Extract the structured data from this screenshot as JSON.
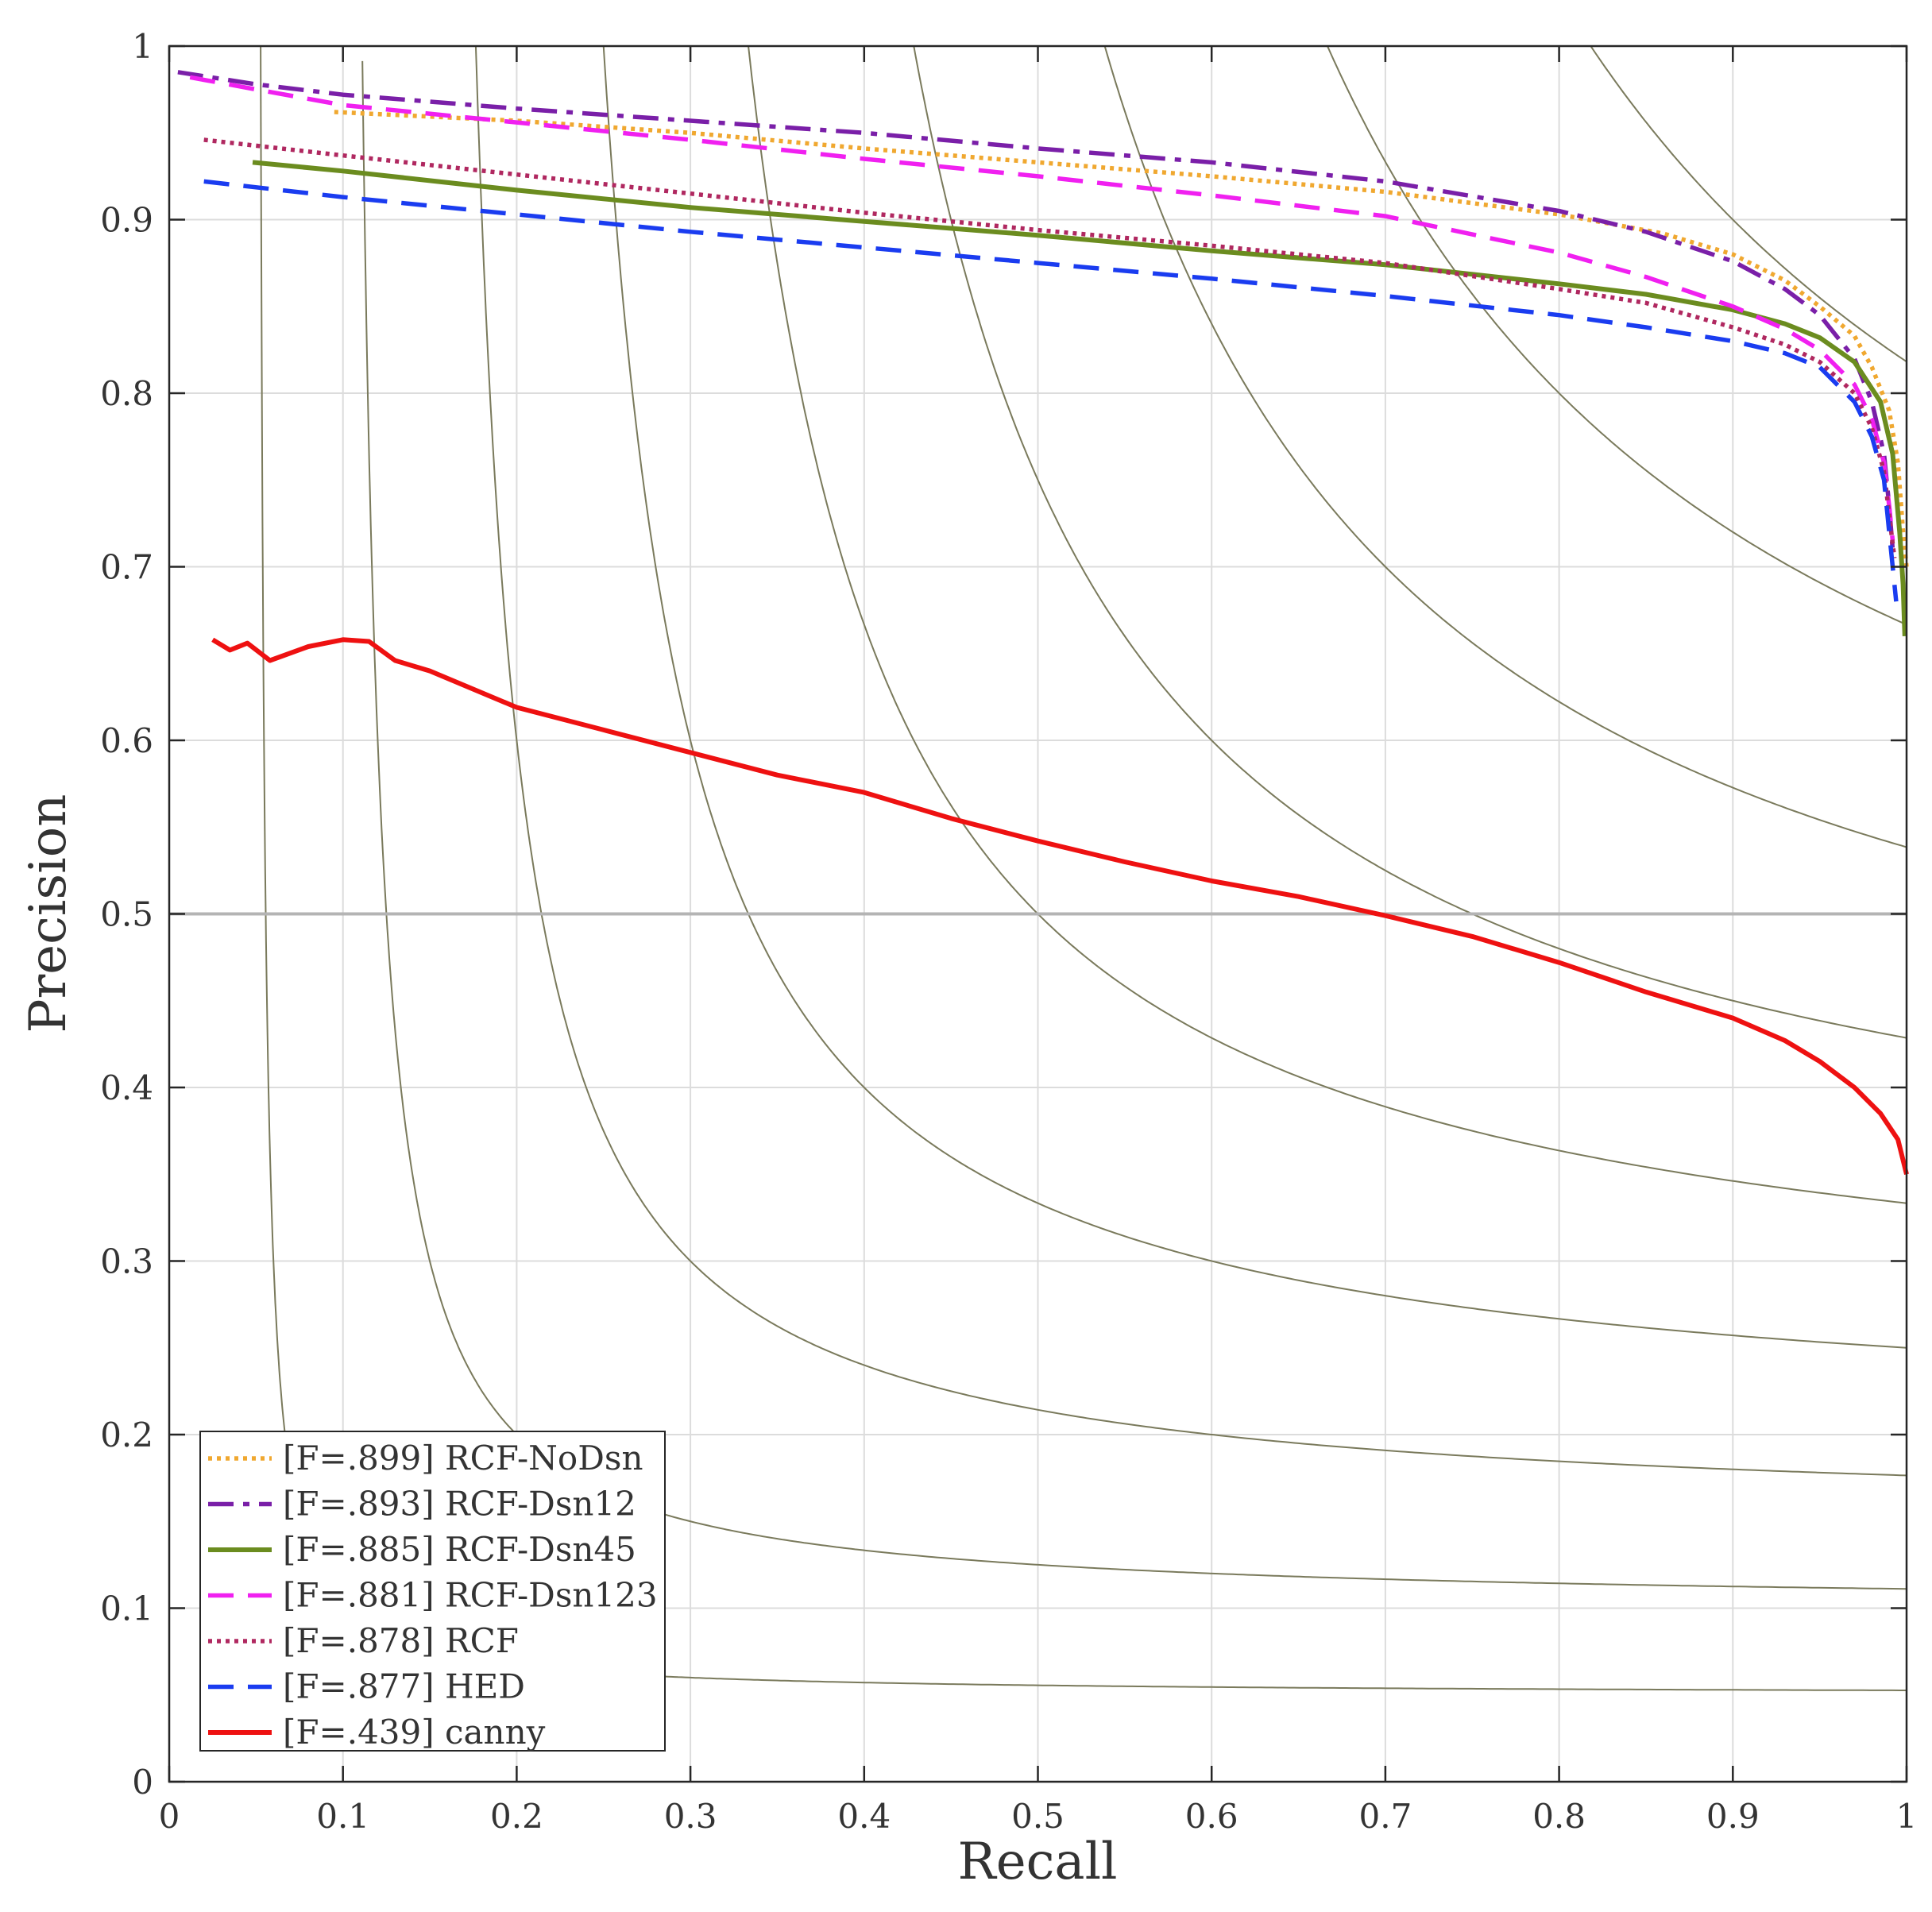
{
  "chart_data": {
    "type": "line",
    "title": "",
    "xlabel": "Recall",
    "ylabel": "Precision",
    "xlim": [
      0,
      1
    ],
    "ylim": [
      0,
      1
    ],
    "grid": true,
    "legend_position": "bottom-left",
    "x_ticks": [
      "0",
      "0.1",
      "0.2",
      "0.3",
      "0.4",
      "0.5",
      "0.6",
      "0.7",
      "0.8",
      "0.9",
      "1"
    ],
    "y_ticks": [
      "0",
      "0.1",
      "0.2",
      "0.3",
      "0.4",
      "0.5",
      "0.6",
      "0.7",
      "0.8",
      "0.9",
      "1"
    ],
    "reference_line": {
      "y": 0.5,
      "color": "#b4b4b4"
    },
    "iso_f_contours": [
      0.1,
      0.2,
      0.3,
      0.4,
      0.5,
      0.6,
      0.7,
      0.8,
      0.9
    ],
    "iso_color": "#7a7a5c",
    "series": [
      {
        "name": "[F=.899] RCF-NoDsn",
        "color": "#f0a830",
        "style": "dotted",
        "points": [
          [
            0.095,
            0.962
          ],
          [
            0.2,
            0.957
          ],
          [
            0.3,
            0.95
          ],
          [
            0.4,
            0.941
          ],
          [
            0.5,
            0.933
          ],
          [
            0.6,
            0.925
          ],
          [
            0.7,
            0.916
          ],
          [
            0.8,
            0.903
          ],
          [
            0.86,
            0.892
          ],
          [
            0.9,
            0.88
          ],
          [
            0.93,
            0.865
          ],
          [
            0.95,
            0.85
          ],
          [
            0.97,
            0.833
          ],
          [
            0.98,
            0.815
          ],
          [
            0.99,
            0.79
          ],
          [
            0.995,
            0.76
          ],
          [
            0.998,
            0.72
          ],
          [
            1.0,
            0.7
          ]
        ]
      },
      {
        "name": "[F=.893] RCF-Dsn12",
        "color": "#7a1fa8",
        "style": "dashdot",
        "points": [
          [
            0.005,
            0.985
          ],
          [
            0.05,
            0.978
          ],
          [
            0.1,
            0.972
          ],
          [
            0.2,
            0.964
          ],
          [
            0.3,
            0.957
          ],
          [
            0.4,
            0.95
          ],
          [
            0.5,
            0.941
          ],
          [
            0.6,
            0.933
          ],
          [
            0.7,
            0.922
          ],
          [
            0.8,
            0.905
          ],
          [
            0.85,
            0.893
          ],
          [
            0.9,
            0.876
          ],
          [
            0.93,
            0.86
          ],
          [
            0.95,
            0.845
          ],
          [
            0.97,
            0.82
          ],
          [
            0.98,
            0.795
          ],
          [
            0.987,
            0.765
          ],
          [
            0.99,
            0.735
          ],
          [
            0.992,
            0.71
          ]
        ]
      },
      {
        "name": "[F=.885] RCF-Dsn45",
        "color": "#6b8c1f",
        "style": "solid",
        "points": [
          [
            0.048,
            0.933
          ],
          [
            0.1,
            0.928
          ],
          [
            0.2,
            0.917
          ],
          [
            0.3,
            0.907
          ],
          [
            0.4,
            0.899
          ],
          [
            0.5,
            0.891
          ],
          [
            0.6,
            0.882
          ],
          [
            0.7,
            0.874
          ],
          [
            0.8,
            0.863
          ],
          [
            0.85,
            0.857
          ],
          [
            0.9,
            0.848
          ],
          [
            0.93,
            0.84
          ],
          [
            0.95,
            0.832
          ],
          [
            0.97,
            0.818
          ],
          [
            0.985,
            0.795
          ],
          [
            0.992,
            0.765
          ],
          [
            0.996,
            0.72
          ],
          [
            0.998,
            0.69
          ],
          [
            0.999,
            0.66
          ]
        ]
      },
      {
        "name": "[F=.881] RCF-Dsn123",
        "color": "#f020f0",
        "style": "dashed",
        "points": [
          [
            0.012,
            0.982
          ],
          [
            0.05,
            0.975
          ],
          [
            0.1,
            0.966
          ],
          [
            0.2,
            0.956
          ],
          [
            0.3,
            0.946
          ],
          [
            0.4,
            0.935
          ],
          [
            0.5,
            0.925
          ],
          [
            0.6,
            0.914
          ],
          [
            0.7,
            0.902
          ],
          [
            0.8,
            0.881
          ],
          [
            0.85,
            0.867
          ],
          [
            0.9,
            0.85
          ],
          [
            0.93,
            0.837
          ],
          [
            0.95,
            0.825
          ],
          [
            0.97,
            0.805
          ],
          [
            0.98,
            0.785
          ],
          [
            0.987,
            0.76
          ],
          [
            0.99,
            0.735
          ],
          [
            0.992,
            0.715
          ]
        ]
      },
      {
        "name": "[F=.878] RCF",
        "color": "#b02860",
        "style": "dotted",
        "points": [
          [
            0.02,
            0.946
          ],
          [
            0.1,
            0.937
          ],
          [
            0.2,
            0.926
          ],
          [
            0.3,
            0.915
          ],
          [
            0.4,
            0.904
          ],
          [
            0.5,
            0.894
          ],
          [
            0.6,
            0.885
          ],
          [
            0.7,
            0.875
          ],
          [
            0.8,
            0.86
          ],
          [
            0.85,
            0.852
          ],
          [
            0.9,
            0.838
          ],
          [
            0.93,
            0.828
          ],
          [
            0.95,
            0.818
          ],
          [
            0.97,
            0.8
          ],
          [
            0.98,
            0.78
          ],
          [
            0.987,
            0.755
          ],
          [
            0.99,
            0.73
          ],
          [
            0.993,
            0.705
          ]
        ]
      },
      {
        "name": "[F=.877] HED",
        "color": "#1a3cf0",
        "style": "dashed",
        "points": [
          [
            0.02,
            0.922
          ],
          [
            0.1,
            0.913
          ],
          [
            0.2,
            0.903
          ],
          [
            0.3,
            0.893
          ],
          [
            0.4,
            0.884
          ],
          [
            0.5,
            0.875
          ],
          [
            0.6,
            0.866
          ],
          [
            0.7,
            0.856
          ],
          [
            0.8,
            0.845
          ],
          [
            0.85,
            0.838
          ],
          [
            0.9,
            0.83
          ],
          [
            0.93,
            0.823
          ],
          [
            0.95,
            0.815
          ],
          [
            0.97,
            0.795
          ],
          [
            0.98,
            0.775
          ],
          [
            0.987,
            0.75
          ],
          [
            0.99,
            0.72
          ],
          [
            0.993,
            0.69
          ],
          [
            0.994,
            0.68
          ]
        ]
      },
      {
        "name": "[F=.439] canny",
        "color": "#ee1111",
        "style": "solid",
        "points": [
          [
            0.025,
            0.658
          ],
          [
            0.035,
            0.652
          ],
          [
            0.045,
            0.656
          ],
          [
            0.058,
            0.646
          ],
          [
            0.08,
            0.654
          ],
          [
            0.1,
            0.658
          ],
          [
            0.115,
            0.657
          ],
          [
            0.13,
            0.646
          ],
          [
            0.15,
            0.64
          ],
          [
            0.2,
            0.619
          ],
          [
            0.25,
            0.606
          ],
          [
            0.3,
            0.593
          ],
          [
            0.35,
            0.58
          ],
          [
            0.4,
            0.57
          ],
          [
            0.45,
            0.555
          ],
          [
            0.5,
            0.542
          ],
          [
            0.55,
            0.53
          ],
          [
            0.6,
            0.519
          ],
          [
            0.65,
            0.51
          ],
          [
            0.7,
            0.499
          ],
          [
            0.75,
            0.487
          ],
          [
            0.8,
            0.472
          ],
          [
            0.85,
            0.455
          ],
          [
            0.9,
            0.44
          ],
          [
            0.93,
            0.427
          ],
          [
            0.95,
            0.415
          ],
          [
            0.97,
            0.4
          ],
          [
            0.985,
            0.385
          ],
          [
            0.995,
            0.37
          ],
          [
            1.0,
            0.35
          ]
        ]
      }
    ]
  }
}
